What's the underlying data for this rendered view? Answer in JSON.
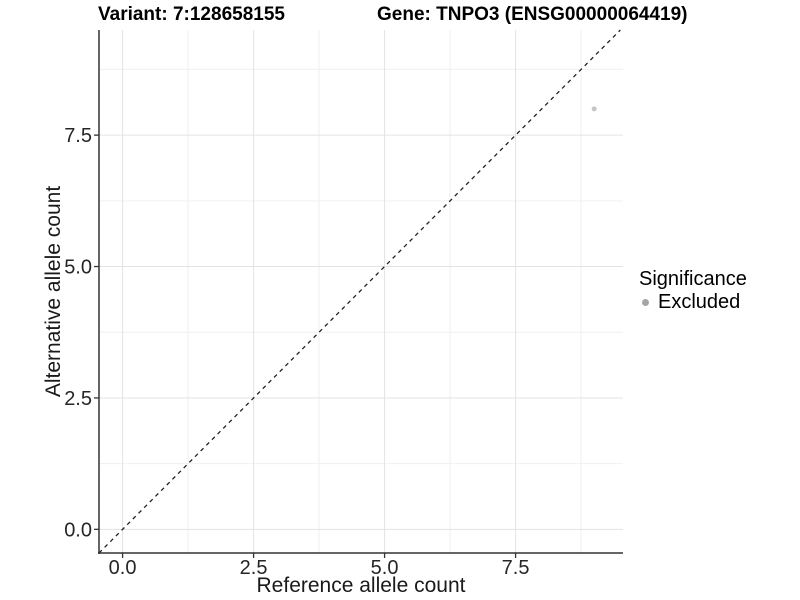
{
  "chart_data": {
    "type": "scatter",
    "title_left": "Variant: 7:128658155",
    "title_right": "Gene: TNPO3 (ENSG00000064419)",
    "xlabel": "Reference allele count",
    "ylabel": "Alternative allele count",
    "xlim": [
      -0.45,
      9.55
    ],
    "ylim": [
      -0.45,
      9.5
    ],
    "xticks": [
      0,
      2.5,
      5,
      7.5
    ],
    "xtick_labels": [
      "0.0",
      "2.5",
      "5.0",
      "7.5"
    ],
    "yticks": [
      0,
      2.5,
      5,
      7.5
    ],
    "ytick_labels": [
      "0.0",
      "2.5",
      "5.0",
      "7.5"
    ],
    "minor_xticks": [
      1.25,
      3.75,
      6.25,
      8.75
    ],
    "minor_yticks": [
      1.25,
      3.75,
      6.25,
      8.75
    ],
    "grid": "major+minor",
    "legend_position": "right",
    "series": [
      {
        "name": "Excluded",
        "color": "#c5c5c5",
        "points": [
          [
            9,
            8
          ]
        ]
      }
    ],
    "identity_line": {
      "equation": "y = x",
      "style": "dashed",
      "color": "#222222"
    },
    "legend": {
      "title": "Significance",
      "items": [
        {
          "label": "Excluded",
          "color": "#a5a5a5"
        }
      ]
    }
  }
}
